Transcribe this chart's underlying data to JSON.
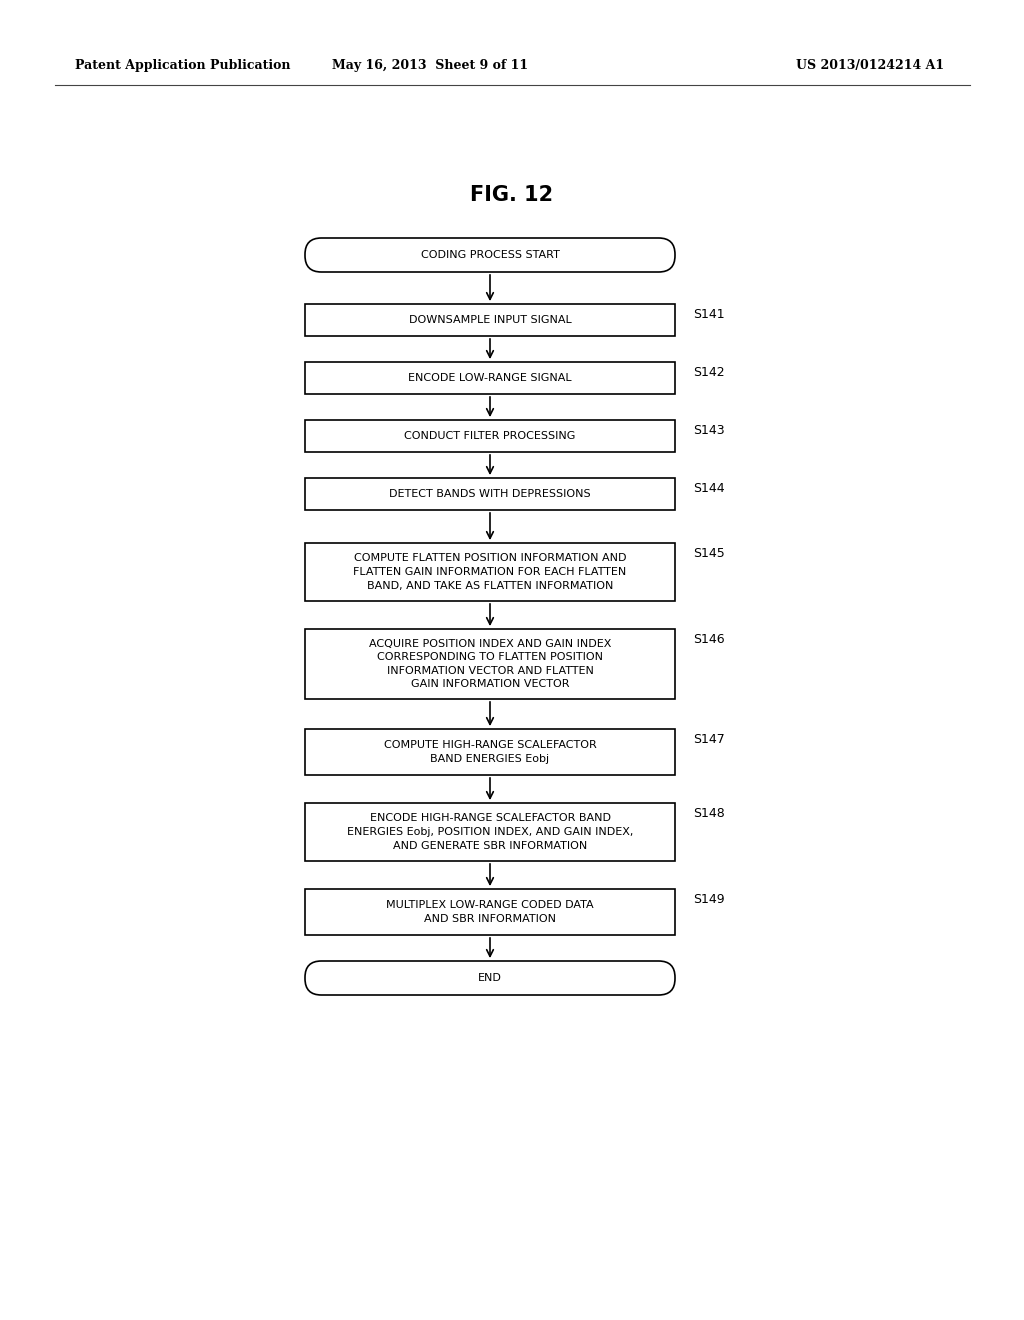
{
  "title": "FIG. 12",
  "header_left": "Patent Application Publication",
  "header_middle": "May 16, 2013  Sheet 9 of 11",
  "header_right": "US 2013/0124214 A1",
  "background_color": "#ffffff",
  "text_color": "#000000",
  "box_edge_color": "#000000",
  "steps": [
    {
      "id": "start",
      "type": "rounded",
      "text": "CODING PROCESS START",
      "label": ""
    },
    {
      "id": "s141",
      "type": "rect",
      "text": "DOWNSAMPLE INPUT SIGNAL",
      "label": "S141"
    },
    {
      "id": "s142",
      "type": "rect",
      "text": "ENCODE LOW-RANGE SIGNAL",
      "label": "S142"
    },
    {
      "id": "s143",
      "type": "rect",
      "text": "CONDUCT FILTER PROCESSING",
      "label": "S143"
    },
    {
      "id": "s144",
      "type": "rect",
      "text": "DETECT BANDS WITH DEPRESSIONS",
      "label": "S144"
    },
    {
      "id": "s145",
      "type": "rect",
      "text": "COMPUTE FLATTEN POSITION INFORMATION AND\nFLATTEN GAIN INFORMATION FOR EACH FLATTEN\nBAND, AND TAKE AS FLATTEN INFORMATION",
      "label": "S145"
    },
    {
      "id": "s146",
      "type": "rect",
      "text": "ACQUIRE POSITION INDEX AND GAIN INDEX\nCORRESPONDING TO FLATTEN POSITION\nINFORMATION VECTOR AND FLATTEN\nGAIN INFORMATION VECTOR",
      "label": "S146"
    },
    {
      "id": "s147",
      "type": "rect",
      "text": "COMPUTE HIGH-RANGE SCALEFACTOR\nBAND ENERGIES Eobj",
      "label": "S147"
    },
    {
      "id": "s148",
      "type": "rect",
      "text": "ENCODE HIGH-RANGE SCALEFACTOR BAND\nENERGIES Eobj, POSITION INDEX, AND GAIN INDEX,\nAND GENERATE SBR INFORMATION",
      "label": "S148"
    },
    {
      "id": "s149",
      "type": "rect",
      "text": "MULTIPLEX LOW-RANGE CODED DATA\nAND SBR INFORMATION",
      "label": "S149"
    },
    {
      "id": "end",
      "type": "rounded",
      "text": "END",
      "label": ""
    }
  ],
  "font_size": 8.0,
  "label_font_size": 9.0,
  "title_font_size": 15,
  "header_font_size": 9.0
}
